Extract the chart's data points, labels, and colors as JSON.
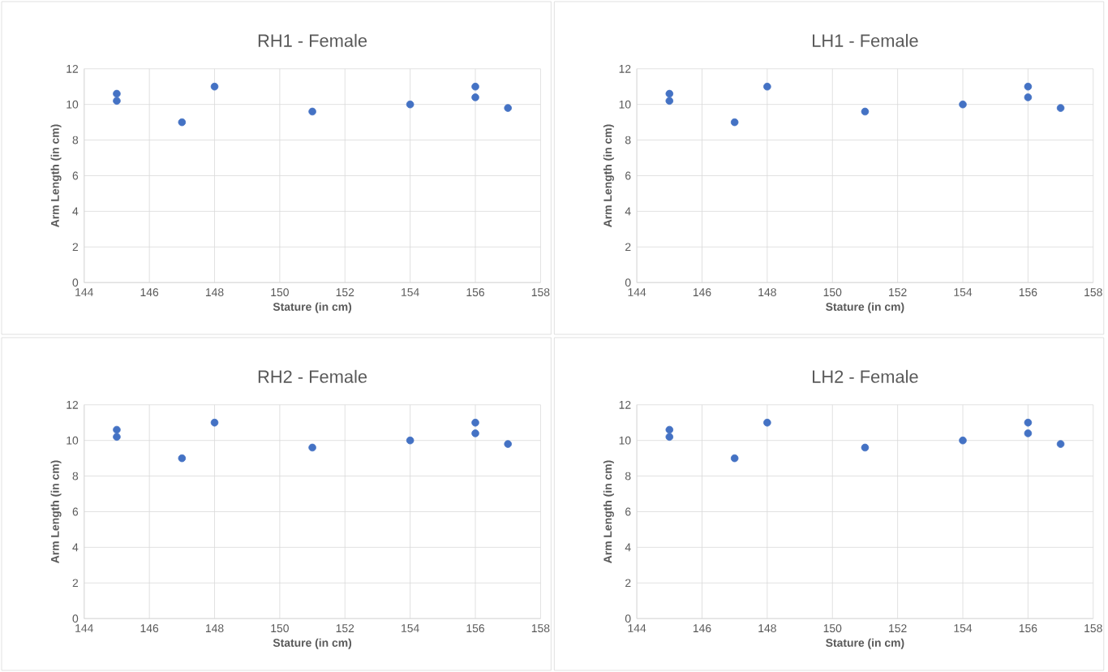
{
  "chart_data": [
    {
      "type": "scatter",
      "title": "RH1 - Female",
      "xlabel": "Stature (in cm)",
      "ylabel": "Arm Length (in cm)",
      "x": [
        145,
        145,
        147,
        148,
        151,
        154,
        156,
        156,
        157
      ],
      "values": [
        10.6,
        10.2,
        9,
        11,
        9.6,
        10,
        11,
        10.4,
        9.8
      ],
      "color": "#4472c4",
      "xlim": [
        144,
        158
      ],
      "xticks": [
        144,
        146,
        148,
        150,
        152,
        154,
        156,
        158
      ],
      "ylim": [
        0,
        12
      ],
      "yticks": [
        0,
        2,
        4,
        6,
        8,
        10,
        12
      ],
      "grid": true,
      "marker": "circle"
    },
    {
      "type": "scatter",
      "title": "LH1 - Female",
      "xlabel": "Stature (in cm)",
      "ylabel": "Arm Length (in cm)",
      "x": [
        145,
        145,
        147,
        148,
        151,
        154,
        156,
        156,
        157
      ],
      "values": [
        10.6,
        10.2,
        9,
        11,
        9.6,
        10,
        11,
        10.4,
        9.8
      ],
      "color": "#4472c4",
      "xlim": [
        144,
        158
      ],
      "xticks": [
        144,
        146,
        148,
        150,
        152,
        154,
        156,
        158
      ],
      "ylim": [
        0,
        12
      ],
      "yticks": [
        0,
        2,
        4,
        6,
        8,
        10,
        12
      ],
      "grid": true,
      "marker": "circle"
    },
    {
      "type": "scatter",
      "title": "RH2 - Female",
      "xlabel": "Stature (in cm)",
      "ylabel": "Arm Length (in cm)",
      "x": [
        145,
        145,
        147,
        148,
        151,
        154,
        156,
        156,
        157
      ],
      "values": [
        10.6,
        10.2,
        9,
        11,
        9.6,
        10,
        11,
        10.4,
        9.8
      ],
      "color": "#4472c4",
      "xlim": [
        144,
        158
      ],
      "xticks": [
        144,
        146,
        148,
        150,
        152,
        154,
        156,
        158
      ],
      "ylim": [
        0,
        12
      ],
      "yticks": [
        0,
        2,
        4,
        6,
        8,
        10,
        12
      ],
      "grid": true,
      "marker": "circle"
    },
    {
      "type": "scatter",
      "title": "LH2 - Female",
      "xlabel": "Stature (in cm)",
      "ylabel": "Arm Length (in cm)",
      "x": [
        145,
        145,
        147,
        148,
        151,
        154,
        156,
        156,
        157
      ],
      "values": [
        10.6,
        10.2,
        9,
        11,
        9.6,
        10,
        11,
        10.4,
        9.8
      ],
      "color": "#4472c4",
      "xlim": [
        144,
        158
      ],
      "xticks": [
        144,
        146,
        148,
        150,
        152,
        154,
        156,
        158
      ],
      "ylim": [
        0,
        12
      ],
      "yticks": [
        0,
        2,
        4,
        6,
        8,
        10,
        12
      ],
      "grid": true,
      "marker": "circle"
    }
  ]
}
